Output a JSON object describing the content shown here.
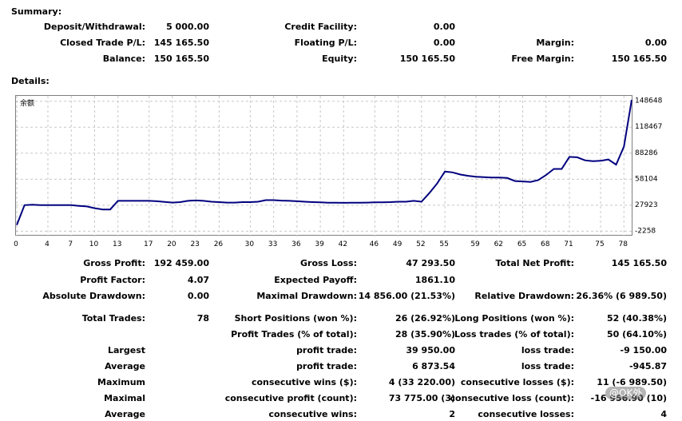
{
  "summary": {
    "title": "Summary:",
    "rows": [
      [
        {
          "label": "Deposit/Withdrawal:",
          "value": "5 000.00"
        },
        {
          "label": "Credit Facility:",
          "value": "0.00"
        },
        {
          "label": "",
          "value": ""
        }
      ],
      [
        {
          "label": "Closed Trade P/L:",
          "value": "145 165.50"
        },
        {
          "label": "Floating P/L:",
          "value": "0.00"
        },
        {
          "label": "Margin:",
          "value": "0.00"
        }
      ],
      [
        {
          "label": "Balance:",
          "value": "150 165.50"
        },
        {
          "label": "Equity:",
          "value": "150 165.50"
        },
        {
          "label": "Free Margin:",
          "value": "150 165.50"
        }
      ]
    ]
  },
  "details": {
    "title": "Details:",
    "rows": [
      [
        {
          "label": "Gross Profit:",
          "value": "192 459.00"
        },
        {
          "label": "Gross Loss:",
          "value": "47 293.50"
        },
        {
          "label": "Total Net Profit:",
          "value": "145 165.50"
        }
      ],
      [
        {
          "label": "Profit Factor:",
          "value": "4.07"
        },
        {
          "label": "Expected Payoff:",
          "value": "1861.10"
        },
        {
          "label": "",
          "value": ""
        }
      ],
      [
        {
          "label": "Absolute Drawdown:",
          "value": "0.00"
        },
        {
          "label": "Maximal Drawdown:",
          "value": "14 856.00 (21.53%)"
        },
        {
          "label": "Relative Drawdown:",
          "value": "26.36% (6 989.50)"
        }
      ],
      [
        {
          "label": "Total Trades:",
          "value": "78"
        },
        {
          "label": "Short Positions (won %):",
          "value": "26 (26.92%)"
        },
        {
          "label": "Long Positions (won %):",
          "value": "52 (40.38%)"
        }
      ],
      [
        {
          "label": "",
          "value": ""
        },
        {
          "label": "Profit Trades (% of total):",
          "value": "28 (35.90%)"
        },
        {
          "label": "Loss trades (% of total):",
          "value": "50 (64.10%)"
        }
      ],
      [
        {
          "label": "Largest",
          "value": ""
        },
        {
          "label": "profit trade:",
          "value": "39 950.00"
        },
        {
          "label": "loss trade:",
          "value": "-9 150.00"
        }
      ],
      [
        {
          "label": "Average",
          "value": ""
        },
        {
          "label": "profit trade:",
          "value": "6 873.54"
        },
        {
          "label": "loss trade:",
          "value": "-945.87"
        }
      ],
      [
        {
          "label": "Maximum",
          "value": ""
        },
        {
          "label": "consecutive wins ($):",
          "value": "4 (33 220.00)"
        },
        {
          "label": "consecutive losses ($):",
          "value": "11 (-6 989.50)"
        }
      ],
      [
        {
          "label": "Maximal",
          "value": ""
        },
        {
          "label": "consecutive profit (count):",
          "value": "73 775.00 (3)"
        },
        {
          "label": "consecutive loss (count):",
          "value": "-16 956.90 (10)"
        }
      ],
      [
        {
          "label": "Average",
          "value": ""
        },
        {
          "label": "consecutive wins:",
          "value": "2"
        },
        {
          "label": "consecutive losses:",
          "value": "4"
        }
      ]
    ]
  },
  "watermark": "@OK外",
  "colors": {
    "line": "#00007f",
    "grid": "#c8c8c8",
    "border": "#7f7f7f"
  },
  "chart_data": {
    "type": "line",
    "title": "余额",
    "x_ticks": [
      "0",
      "4",
      "7",
      "10",
      "13",
      "17",
      "20",
      "23",
      "26",
      "30",
      "33",
      "36",
      "39",
      "42",
      "46",
      "49",
      "52",
      "55",
      "59",
      "62",
      "65",
      "68",
      "71",
      "75",
      "78"
    ],
    "y_ticks": [
      "148648",
      "118467",
      "88286",
      "58104",
      "27923",
      "-2258"
    ],
    "xlim": [
      0,
      79
    ],
    "ylim": [
      -6500,
      153000
    ],
    "grid": true,
    "series": [
      {
        "x": [
          0,
          1,
          2,
          3,
          4,
          5,
          6,
          7,
          8,
          9,
          10,
          11,
          12,
          13,
          14,
          15,
          16,
          17,
          18,
          19,
          20,
          21,
          22,
          23,
          24,
          25,
          26,
          27,
          28,
          29,
          30,
          31,
          32,
          33,
          34,
          35,
          36,
          37,
          38,
          39,
          40,
          41,
          42,
          43,
          44,
          45,
          46,
          47,
          48,
          49,
          50,
          51,
          52,
          53,
          54,
          55,
          56,
          57,
          58,
          59,
          60,
          61,
          62,
          63,
          64,
          65,
          66,
          67,
          68,
          69,
          70,
          71,
          72,
          73,
          74,
          75,
          76,
          77,
          78,
          79
        ],
        "y": [
          5000,
          28000,
          28500,
          28000,
          28000,
          28000,
          28000,
          28000,
          27200,
          26500,
          24500,
          23000,
          23000,
          33000,
          33000,
          33000,
          33000,
          33000,
          32500,
          31800,
          31000,
          31500,
          33000,
          33500,
          33000,
          32000,
          31500,
          31000,
          31000,
          31500,
          31500,
          32000,
          33800,
          33800,
          33300,
          33000,
          32500,
          32000,
          31500,
          31200,
          30900,
          30800,
          30700,
          30800,
          30900,
          31000,
          31200,
          31300,
          31500,
          32000,
          32000,
          33000,
          32000,
          42000,
          53000,
          67000,
          66000,
          63500,
          62000,
          61000,
          60500,
          60000,
          60000,
          59500,
          56000,
          55500,
          55000,
          57000,
          63000,
          70000,
          70000,
          84000,
          83500,
          80000,
          79000,
          79500,
          81000,
          75000,
          96000,
          150165
        ]
      }
    ]
  }
}
